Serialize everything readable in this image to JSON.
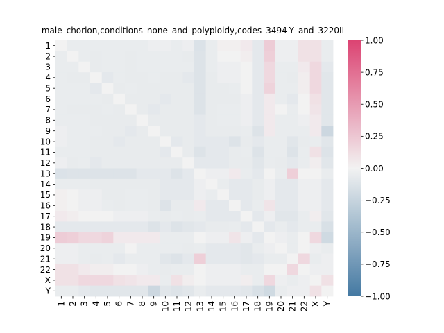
{
  "chart_data": {
    "type": "heatmap",
    "title": "male_chorion,conditions_none_and_polyploidy,codes_3494-Y_and_3220II",
    "xlabel": "",
    "ylabel": "",
    "labels": [
      "1",
      "2",
      "3",
      "4",
      "5",
      "6",
      "7",
      "8",
      "9",
      "10",
      "11",
      "12",
      "13",
      "14",
      "15",
      "16",
      "17",
      "18",
      "19",
      "20",
      "21",
      "22",
      "X",
      "Y"
    ],
    "vmin": -1.0,
    "vmax": 1.0,
    "colorbar_ticks": [
      -1.0,
      -0.75,
      -0.5,
      -0.25,
      0.0,
      0.25,
      0.5,
      0.75,
      1.0
    ],
    "colorbar_tick_labels": [
      "−1.00",
      "−0.75",
      "−0.50",
      "−0.25",
      "0.00",
      "0.25",
      "0.50",
      "0.75",
      "1.00"
    ],
    "colormap": {
      "low": "#4479a2",
      "mid": "#f2f2f2",
      "high": "#dc4372"
    },
    "values": [
      [
        0.0,
        -0.05,
        -0.05,
        -0.05,
        -0.05,
        -0.05,
        -0.05,
        -0.05,
        -0.03,
        -0.03,
        -0.05,
        -0.03,
        -0.13,
        -0.05,
        0.02,
        0.02,
        0.05,
        -0.08,
        0.22,
        -0.03,
        -0.03,
        0.1,
        0.1,
        -0.05
      ],
      [
        -0.05,
        0.0,
        -0.05,
        -0.06,
        -0.05,
        -0.05,
        -0.06,
        -0.05,
        -0.05,
        -0.05,
        -0.05,
        -0.06,
        -0.12,
        -0.05,
        0.0,
        0.0,
        0.03,
        -0.08,
        0.2,
        -0.03,
        -0.03,
        0.1,
        0.1,
        -0.05
      ],
      [
        -0.05,
        -0.05,
        0.0,
        -0.06,
        -0.05,
        -0.05,
        -0.06,
        -0.05,
        -0.05,
        -0.05,
        -0.05,
        -0.05,
        -0.12,
        -0.05,
        -0.03,
        -0.03,
        0.0,
        -0.08,
        0.15,
        -0.05,
        -0.05,
        0.05,
        0.15,
        -0.08
      ],
      [
        -0.05,
        -0.06,
        -0.06,
        0.0,
        -0.08,
        -0.05,
        -0.06,
        -0.06,
        -0.05,
        -0.06,
        -0.06,
        -0.08,
        -0.12,
        -0.06,
        -0.03,
        -0.03,
        0.0,
        -0.08,
        0.15,
        -0.05,
        -0.06,
        0.03,
        0.15,
        -0.1
      ],
      [
        -0.05,
        -0.05,
        -0.05,
        -0.08,
        0.0,
        -0.06,
        -0.05,
        -0.06,
        -0.06,
        -0.06,
        -0.06,
        -0.06,
        -0.12,
        -0.06,
        -0.06,
        -0.05,
        0.0,
        -0.08,
        0.18,
        -0.05,
        -0.05,
        0.03,
        0.15,
        -0.1
      ],
      [
        -0.05,
        -0.05,
        -0.05,
        -0.05,
        -0.06,
        0.0,
        -0.06,
        -0.06,
        -0.06,
        -0.08,
        -0.06,
        -0.06,
        -0.12,
        -0.06,
        -0.06,
        -0.06,
        -0.03,
        -0.08,
        0.05,
        -0.05,
        -0.08,
        0.0,
        0.1,
        -0.1
      ],
      [
        -0.05,
        -0.06,
        -0.06,
        -0.06,
        -0.05,
        -0.06,
        0.0,
        -0.06,
        -0.08,
        -0.06,
        -0.06,
        -0.06,
        -0.12,
        -0.06,
        -0.05,
        -0.05,
        -0.03,
        -0.08,
        0.05,
        0.0,
        -0.05,
        0.0,
        0.08,
        -0.1
      ],
      [
        -0.05,
        -0.05,
        -0.05,
        -0.06,
        -0.06,
        -0.06,
        -0.06,
        0.0,
        -0.06,
        -0.06,
        -0.06,
        -0.06,
        -0.08,
        -0.06,
        -0.05,
        -0.05,
        -0.03,
        -0.08,
        0.05,
        -0.05,
        -0.05,
        -0.03,
        0.05,
        -0.1
      ],
      [
        -0.03,
        -0.05,
        -0.05,
        -0.05,
        -0.06,
        -0.06,
        -0.08,
        -0.06,
        0.0,
        -0.06,
        -0.06,
        -0.06,
        -0.08,
        -0.06,
        -0.06,
        -0.06,
        -0.05,
        -0.12,
        0.05,
        -0.05,
        -0.05,
        -0.05,
        0.05,
        -0.22
      ],
      [
        -0.03,
        -0.05,
        -0.05,
        -0.06,
        -0.06,
        -0.08,
        -0.06,
        -0.06,
        -0.06,
        0.0,
        -0.08,
        -0.06,
        -0.08,
        -0.08,
        -0.08,
        -0.12,
        -0.06,
        -0.08,
        -0.05,
        -0.05,
        -0.1,
        -0.06,
        -0.05,
        -0.1
      ],
      [
        -0.05,
        -0.05,
        -0.05,
        -0.06,
        -0.06,
        -0.06,
        -0.06,
        -0.06,
        -0.06,
        -0.08,
        0.0,
        -0.06,
        -0.12,
        -0.08,
        -0.08,
        -0.06,
        -0.05,
        -0.12,
        -0.05,
        -0.05,
        -0.12,
        -0.05,
        0.1,
        -0.12
      ],
      [
        -0.03,
        -0.06,
        -0.05,
        -0.08,
        -0.06,
        -0.06,
        -0.06,
        -0.06,
        -0.06,
        -0.06,
        -0.06,
        0.0,
        -0.08,
        -0.08,
        -0.08,
        -0.06,
        -0.06,
        -0.1,
        -0.05,
        -0.06,
        -0.08,
        -0.05,
        0.03,
        -0.1
      ],
      [
        -0.13,
        -0.12,
        -0.12,
        -0.12,
        -0.12,
        -0.12,
        -0.12,
        -0.08,
        -0.08,
        -0.08,
        -0.12,
        -0.08,
        0.0,
        -0.03,
        -0.03,
        0.05,
        -0.05,
        -0.08,
        0.0,
        -0.05,
        0.2,
        0.0,
        0.0,
        -0.05
      ],
      [
        -0.05,
        -0.05,
        -0.05,
        -0.06,
        -0.06,
        -0.06,
        -0.06,
        -0.06,
        -0.06,
        -0.08,
        -0.08,
        -0.08,
        -0.03,
        0.0,
        -0.05,
        -0.08,
        -0.08,
        -0.06,
        -0.03,
        -0.08,
        -0.08,
        -0.03,
        -0.03,
        -0.08
      ],
      [
        0.02,
        0.0,
        -0.03,
        -0.03,
        -0.06,
        -0.06,
        -0.05,
        -0.05,
        -0.06,
        -0.08,
        -0.08,
        -0.08,
        -0.03,
        -0.05,
        0.0,
        -0.08,
        -0.08,
        -0.06,
        -0.03,
        -0.08,
        -0.08,
        -0.03,
        -0.03,
        -0.08
      ],
      [
        0.02,
        0.0,
        -0.03,
        -0.03,
        -0.05,
        -0.06,
        -0.05,
        -0.05,
        -0.06,
        -0.12,
        -0.06,
        -0.06,
        0.05,
        -0.08,
        -0.08,
        0.0,
        -0.08,
        -0.05,
        0.08,
        -0.08,
        -0.08,
        -0.03,
        -0.03,
        -0.08
      ],
      [
        0.05,
        0.03,
        0.0,
        0.0,
        0.0,
        -0.03,
        -0.03,
        -0.03,
        -0.05,
        -0.06,
        -0.05,
        -0.06,
        -0.05,
        -0.08,
        -0.08,
        -0.08,
        0.0,
        -0.08,
        -0.03,
        -0.1,
        -0.1,
        -0.05,
        0.03,
        -0.1
      ],
      [
        -0.08,
        -0.08,
        -0.08,
        -0.08,
        -0.08,
        -0.08,
        -0.08,
        -0.08,
        -0.12,
        -0.08,
        -0.12,
        -0.1,
        -0.08,
        -0.06,
        -0.06,
        -0.05,
        -0.08,
        0.0,
        -0.08,
        -0.05,
        -0.08,
        -0.05,
        -0.05,
        -0.15
      ],
      [
        0.22,
        0.2,
        0.15,
        0.15,
        0.18,
        0.05,
        0.05,
        0.05,
        0.05,
        -0.05,
        -0.05,
        -0.05,
        0.0,
        -0.03,
        -0.03,
        0.08,
        -0.03,
        -0.08,
        0.0,
        -0.03,
        -0.05,
        0.0,
        0.15,
        -0.2
      ],
      [
        -0.03,
        -0.03,
        -0.05,
        -0.05,
        -0.05,
        -0.05,
        0.0,
        -0.05,
        -0.05,
        -0.05,
        -0.05,
        -0.06,
        -0.05,
        -0.08,
        -0.08,
        -0.08,
        -0.1,
        -0.05,
        -0.03,
        0.0,
        -0.05,
        0.0,
        -0.03,
        -0.05
      ],
      [
        -0.03,
        -0.03,
        -0.05,
        -0.06,
        -0.05,
        -0.08,
        -0.05,
        -0.05,
        -0.05,
        -0.1,
        -0.12,
        -0.08,
        0.2,
        -0.08,
        -0.08,
        -0.08,
        -0.1,
        -0.08,
        -0.05,
        -0.05,
        0.0,
        0.15,
        -0.05,
        -0.03
      ],
      [
        0.1,
        0.1,
        0.05,
        0.03,
        0.03,
        0.0,
        0.0,
        -0.03,
        -0.05,
        -0.06,
        -0.05,
        -0.05,
        0.0,
        -0.03,
        -0.03,
        -0.03,
        -0.05,
        -0.05,
        0.0,
        0.0,
        0.15,
        0.0,
        -0.03,
        -0.03
      ],
      [
        0.1,
        0.1,
        0.15,
        0.15,
        0.15,
        0.1,
        0.08,
        0.05,
        0.05,
        -0.05,
        0.1,
        0.03,
        0.0,
        -0.03,
        -0.03,
        -0.03,
        0.03,
        -0.05,
        0.15,
        -0.03,
        -0.05,
        -0.03,
        0.0,
        0.1
      ],
      [
        -0.05,
        -0.05,
        -0.08,
        -0.1,
        -0.1,
        -0.1,
        -0.1,
        -0.1,
        -0.22,
        -0.1,
        -0.12,
        -0.1,
        -0.05,
        -0.08,
        -0.08,
        -0.08,
        -0.1,
        -0.15,
        -0.2,
        -0.05,
        -0.03,
        -0.03,
        0.1,
        0.0
      ]
    ]
  }
}
